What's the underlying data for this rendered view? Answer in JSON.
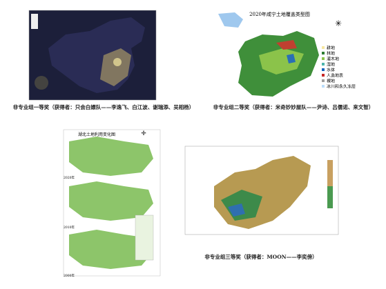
{
  "award_1": {
    "caption": "非专业组一等奖（获得者：只会白嫖队——李逸飞、白江波、谢瑞添、吴相杨）"
  },
  "award_2": {
    "caption": "非专业组二等奖（获得者：米奇妙妙屋队——尹诗、吕儒诺、来文智）",
    "map_title": "2020年咸宁土地覆盖类型图",
    "legend": [
      "耕地",
      "林地",
      "灌木地",
      "湿地",
      "水体",
      "人造地表",
      "裸地",
      "冰川和永久冻层"
    ]
  },
  "award_3": {
    "map_title": "湖北土地利用变化图",
    "years": [
      "2020年",
      "2010年",
      "2000年"
    ]
  },
  "award_4": {
    "caption": "非专业组三等奖（获得者：MOON——李奕傍）"
  }
}
